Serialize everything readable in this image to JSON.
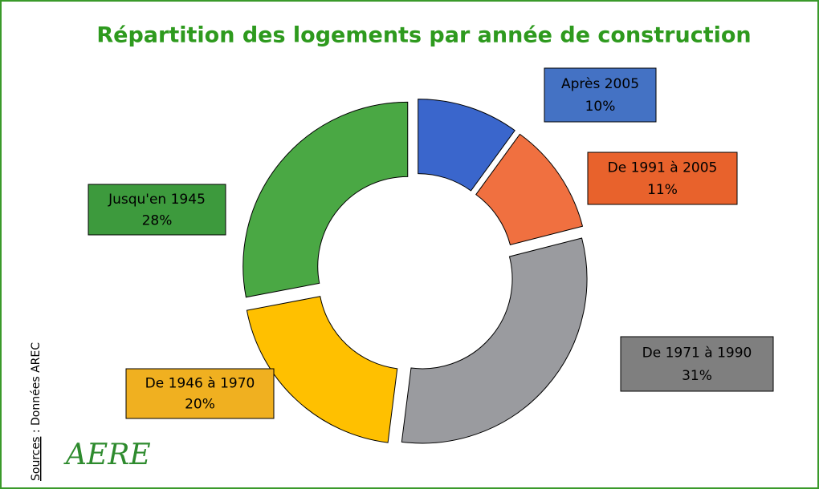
{
  "chart_data": {
    "type": "donut",
    "title": "Répartition des logements par année de construction",
    "categories": [
      "Après 2005",
      "De 1991 à 2005",
      "De 1971 à 1990",
      "De 1946 à 1970",
      "Jusqu'en 1945"
    ],
    "values": [
      10,
      11,
      31,
      20,
      28
    ],
    "value_labels": [
      "10%",
      "11%",
      "31%",
      "20%",
      "28%"
    ],
    "colors": [
      "#3a66cc",
      "#f07040",
      "#9a9b9f",
      "#ffc000",
      "#4aa844"
    ],
    "label_colors": [
      "#4472c4",
      "#e8622c",
      "#7f7f7f",
      "#f0b020",
      "#3d9a3d"
    ],
    "source_label": "Sources",
    "source_text": " : Données AREC",
    "logo": "AERE"
  }
}
